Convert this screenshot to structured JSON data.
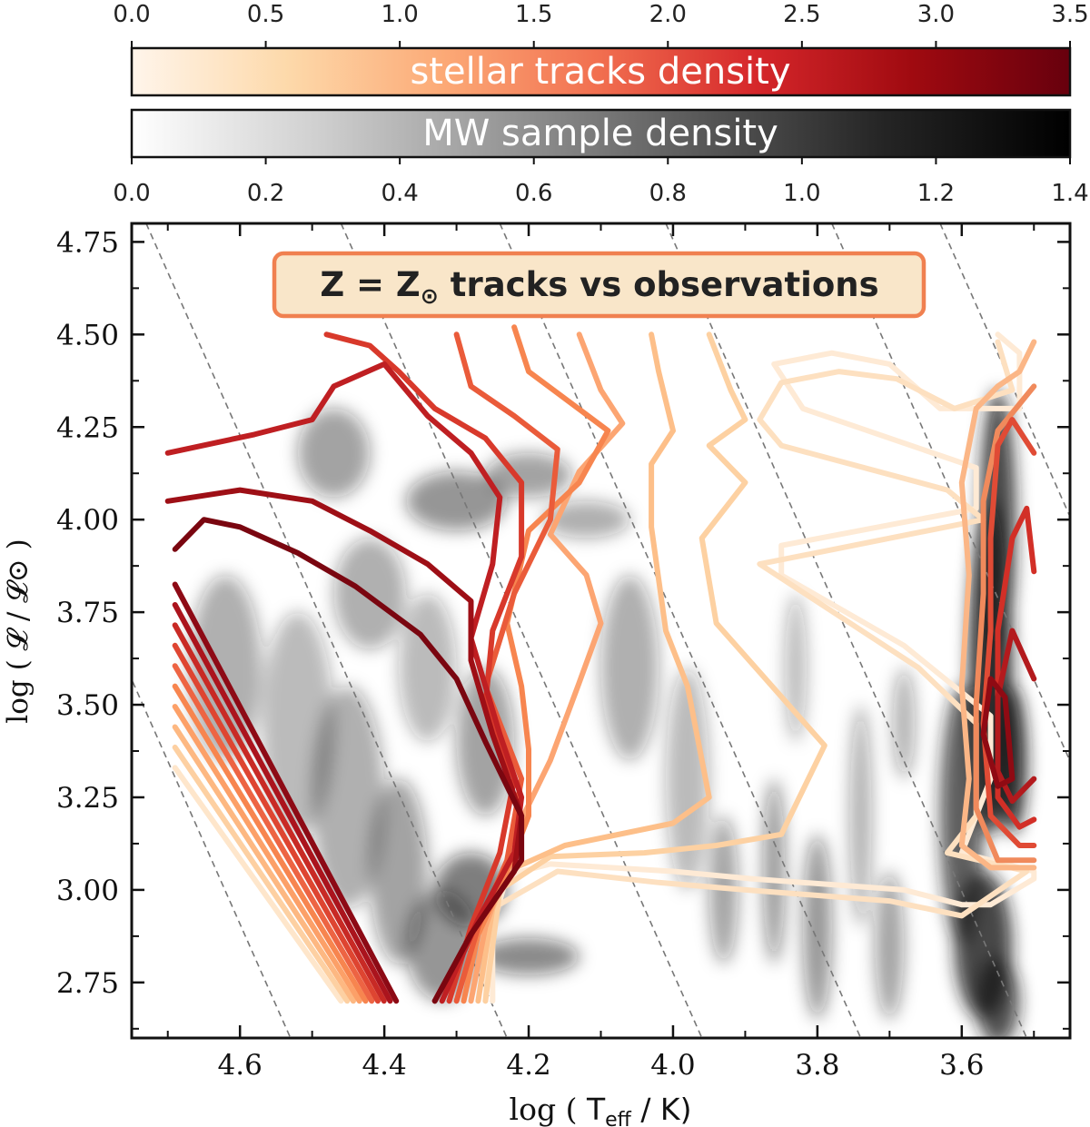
{
  "chart_data": {
    "type": "contour",
    "colorbars": [
      {
        "label": "stellar tracks density",
        "ticks": [
          "0.0",
          "0.5",
          "1.0",
          "1.5",
          "2.0",
          "2.5",
          "3.0",
          "3.5"
        ],
        "range": [
          0,
          3.5
        ],
        "colormap": [
          "#fff5eb",
          "#fdd9aa",
          "#fca976",
          "#f16e4f",
          "#d5262a",
          "#9f0a10",
          "#67000d"
        ]
      },
      {
        "label": "MW sample density",
        "ticks": [
          "0.0",
          "0.2",
          "0.4",
          "0.6",
          "0.8",
          "1.0",
          "1.2",
          "1.4"
        ],
        "range": [
          0,
          1.4
        ],
        "colormap": [
          "#ffffff",
          "#cfcfcf",
          "#969696",
          "#5a5a5a",
          "#252525",
          "#000000"
        ]
      }
    ],
    "xlabel": "log ( T_eff / K)",
    "ylabel": "log ( 𝓛 / 𝓛⊙ )",
    "x_range": [
      4.75,
      3.45
    ],
    "y_range": [
      2.6,
      4.8
    ],
    "x_inverted": true,
    "x_ticks": [
      "4.6",
      "4.4",
      "4.2",
      "4.0",
      "3.8",
      "3.6"
    ],
    "y_ticks": [
      "2.75",
      "3.00",
      "3.25",
      "3.50",
      "3.75",
      "4.00",
      "4.25",
      "4.50",
      "4.75"
    ],
    "annotation": {
      "main": "Z = Z",
      "sun_symbol": "⊙",
      "rest": " tracks vs observations"
    },
    "contour_series": [
      {
        "level": 0,
        "color": "#feead5",
        "points": [
          [
            3.55,
            4.5
          ],
          [
            3.52,
            4.45
          ],
          [
            3.52,
            4.3
          ],
          [
            3.63,
            4.3
          ],
          [
            3.7,
            4.42
          ],
          [
            3.78,
            4.45
          ],
          [
            3.86,
            4.42
          ],
          [
            3.82,
            4.3
          ],
          [
            3.58,
            4.14
          ],
          [
            3.58,
            4.03
          ],
          [
            3.85,
            3.93
          ],
          [
            3.85,
            3.85
          ],
          [
            3.68,
            3.66
          ],
          [
            3.56,
            3.47
          ],
          [
            3.56,
            3.3
          ],
          [
            3.6,
            3.1
          ],
          [
            3.5,
            3.05
          ],
          [
            3.5,
            3.03
          ],
          [
            3.56,
            2.96
          ],
          [
            3.6,
            2.96
          ],
          [
            3.68,
            3.0
          ],
          [
            3.89,
            3.03
          ],
          [
            4.0,
            3.05
          ],
          [
            4.17,
            3.07
          ],
          [
            4.23,
            3.04
          ],
          [
            4.25,
            2.9
          ],
          [
            4.25,
            2.7
          ]
        ]
      },
      {
        "level": 1,
        "color": "#fde0c0",
        "points": [
          [
            3.55,
            4.48
          ],
          [
            3.53,
            4.35
          ],
          [
            3.61,
            4.3
          ],
          [
            3.69,
            4.38
          ],
          [
            3.77,
            4.4
          ],
          [
            3.85,
            4.37
          ],
          [
            3.88,
            4.27
          ],
          [
            3.85,
            4.2
          ],
          [
            3.62,
            4.08
          ],
          [
            3.57,
            4.0
          ],
          [
            3.88,
            3.88
          ],
          [
            3.66,
            3.6
          ],
          [
            3.58,
            3.45
          ],
          [
            3.58,
            3.2
          ],
          [
            3.62,
            3.1
          ],
          [
            3.51,
            3.05
          ],
          [
            3.6,
            2.93
          ],
          [
            3.7,
            2.97
          ],
          [
            3.9,
            3.0
          ],
          [
            4.02,
            3.02
          ],
          [
            4.16,
            3.05
          ],
          [
            4.25,
            2.95
          ],
          [
            4.26,
            2.7
          ]
        ]
      },
      {
        "level": 2,
        "color": "#fdd1a2",
        "points": [
          [
            3.95,
            4.5
          ],
          [
            3.92,
            4.35
          ],
          [
            3.9,
            4.27
          ],
          [
            3.95,
            4.2
          ],
          [
            3.9,
            4.1
          ],
          [
            3.96,
            3.95
          ],
          [
            3.94,
            3.72
          ],
          [
            3.79,
            3.39
          ],
          [
            3.85,
            3.15
          ],
          [
            3.94,
            3.12
          ],
          [
            4.04,
            3.1
          ],
          [
            4.17,
            3.09
          ],
          [
            4.24,
            3.0
          ],
          [
            4.26,
            2.7
          ]
        ]
      },
      {
        "level": 3,
        "color": "#fdbf89",
        "points": [
          [
            4.03,
            4.5
          ],
          [
            4.02,
            4.4
          ],
          [
            4.0,
            4.24
          ],
          [
            4.03,
            4.15
          ],
          [
            4.03,
            3.98
          ],
          [
            4.01,
            3.7
          ],
          [
            3.98,
            3.55
          ],
          [
            3.95,
            3.25
          ],
          [
            4.0,
            3.18
          ],
          [
            4.15,
            3.12
          ],
          [
            4.23,
            3.05
          ],
          [
            4.25,
            2.95
          ],
          [
            4.27,
            2.7
          ]
        ]
      },
      {
        "level": 4,
        "color": "#fca572",
        "points": [
          [
            4.13,
            4.5
          ],
          [
            4.1,
            4.35
          ],
          [
            4.07,
            4.26
          ],
          [
            4.13,
            4.13
          ],
          [
            4.17,
            3.96
          ],
          [
            4.12,
            3.85
          ],
          [
            4.1,
            3.72
          ],
          [
            4.13,
            3.56
          ],
          [
            4.17,
            3.35
          ],
          [
            4.22,
            3.15
          ],
          [
            4.23,
            3.07
          ],
          [
            4.26,
            2.9
          ],
          [
            4.28,
            2.7
          ]
        ]
      },
      {
        "level": 5,
        "color": "#f7854f",
        "points": [
          [
            4.22,
            4.52
          ],
          [
            4.2,
            4.4
          ],
          [
            4.09,
            4.24
          ],
          [
            4.13,
            4.1
          ],
          [
            4.2,
            3.97
          ],
          [
            4.23,
            3.72
          ],
          [
            4.21,
            3.55
          ],
          [
            4.2,
            3.38
          ],
          [
            4.2,
            3.2
          ],
          [
            4.23,
            3.05
          ],
          [
            4.27,
            2.88
          ],
          [
            4.29,
            2.7
          ]
        ]
      },
      {
        "level": 6,
        "color": "#ea5b3a",
        "points": [
          [
            4.3,
            4.5
          ],
          [
            4.28,
            4.36
          ],
          [
            4.22,
            4.28
          ],
          [
            4.16,
            4.19
          ],
          [
            4.17,
            4.0
          ],
          [
            4.22,
            3.8
          ],
          [
            4.26,
            3.55
          ],
          [
            4.21,
            3.3
          ],
          [
            4.23,
            3.08
          ],
          [
            4.27,
            2.9
          ],
          [
            4.3,
            2.7
          ]
        ]
      },
      {
        "level": 7,
        "color": "#d8392b",
        "points": [
          [
            4.48,
            4.5
          ],
          [
            4.42,
            4.47
          ],
          [
            4.38,
            4.4
          ],
          [
            4.33,
            4.3
          ],
          [
            4.26,
            4.22
          ],
          [
            4.21,
            4.1
          ],
          [
            4.21,
            3.9
          ],
          [
            4.25,
            3.7
          ],
          [
            4.26,
            3.5
          ],
          [
            4.22,
            3.3
          ],
          [
            4.24,
            3.1
          ],
          [
            4.28,
            2.9
          ],
          [
            4.31,
            2.7
          ]
        ]
      },
      {
        "level": 8,
        "color": "#bf1f22",
        "points": [
          [
            4.7,
            4.18
          ],
          [
            4.58,
            4.23
          ],
          [
            4.5,
            4.27
          ],
          [
            4.47,
            4.36
          ],
          [
            4.4,
            4.42
          ],
          [
            4.34,
            4.28
          ],
          [
            4.28,
            4.18
          ],
          [
            4.24,
            4.06
          ],
          [
            4.25,
            3.88
          ],
          [
            4.28,
            3.68
          ],
          [
            4.24,
            3.42
          ],
          [
            4.21,
            3.25
          ],
          [
            4.22,
            3.1
          ],
          [
            4.27,
            2.92
          ],
          [
            4.32,
            2.7
          ]
        ]
      },
      {
        "level": 9,
        "color": "#9e0f16",
        "points": [
          [
            4.7,
            4.05
          ],
          [
            4.6,
            4.08
          ],
          [
            4.5,
            4.05
          ],
          [
            4.42,
            3.97
          ],
          [
            4.34,
            3.88
          ],
          [
            4.28,
            3.78
          ],
          [
            4.28,
            3.62
          ],
          [
            4.25,
            3.42
          ],
          [
            4.21,
            3.2
          ],
          [
            4.22,
            3.05
          ],
          [
            4.28,
            2.88
          ],
          [
            4.33,
            2.7
          ]
        ]
      },
      {
        "level": 10,
        "color": "#7a0610",
        "points": [
          [
            4.69,
            3.92
          ],
          [
            4.65,
            4.0
          ],
          [
            4.6,
            3.98
          ],
          [
            4.52,
            3.91
          ],
          [
            4.44,
            3.82
          ],
          [
            4.35,
            3.69
          ],
          [
            4.3,
            3.57
          ],
          [
            4.26,
            3.4
          ],
          [
            4.21,
            3.2
          ],
          [
            4.21,
            3.08
          ],
          [
            4.28,
            2.88
          ],
          [
            4.33,
            2.7
          ]
        ]
      }
    ],
    "right_clump_contours": [
      {
        "color": "#fbb686",
        "points": [
          [
            3.5,
            4.48
          ],
          [
            3.52,
            4.4
          ],
          [
            3.55,
            4.36
          ],
          [
            3.58,
            4.3
          ],
          [
            3.6,
            4.1
          ],
          [
            3.59,
            3.85
          ],
          [
            3.6,
            3.55
          ],
          [
            3.59,
            3.3
          ],
          [
            3.6,
            3.12
          ],
          [
            3.56,
            3.06
          ],
          [
            3.5,
            3.06
          ]
        ]
      },
      {
        "color": "#f08a5c",
        "points": [
          [
            3.5,
            4.36
          ],
          [
            3.55,
            4.24
          ],
          [
            3.57,
            4.05
          ],
          [
            3.57,
            3.8
          ],
          [
            3.58,
            3.5
          ],
          [
            3.58,
            3.22
          ],
          [
            3.55,
            3.08
          ],
          [
            3.5,
            3.08
          ]
        ]
      },
      {
        "color": "#e04b35",
        "points": [
          [
            3.5,
            4.18
          ],
          [
            3.53,
            4.27
          ],
          [
            3.55,
            4.2
          ],
          [
            3.56,
            3.95
          ],
          [
            3.56,
            3.7
          ],
          [
            3.57,
            3.45
          ],
          [
            3.56,
            3.2
          ],
          [
            3.52,
            3.12
          ],
          [
            3.5,
            3.12
          ]
        ]
      },
      {
        "color": "#d22f27",
        "points": [
          [
            3.5,
            3.86
          ],
          [
            3.51,
            4.03
          ],
          [
            3.53,
            3.95
          ],
          [
            3.55,
            3.7
          ],
          [
            3.55,
            3.45
          ],
          [
            3.55,
            3.25
          ],
          [
            3.52,
            3.17
          ],
          [
            3.5,
            3.19
          ]
        ]
      },
      {
        "color": "#b31a1d",
        "points": [
          [
            3.5,
            3.57
          ],
          [
            3.53,
            3.7
          ],
          [
            3.55,
            3.52
          ],
          [
            3.55,
            3.32
          ],
          [
            3.53,
            3.24
          ],
          [
            3.5,
            3.3
          ]
        ]
      },
      {
        "color": "#8f0a13",
        "points": [
          [
            3.53,
            3.3
          ],
          [
            3.54,
            3.52
          ],
          [
            3.56,
            3.57
          ],
          [
            3.57,
            3.42
          ],
          [
            3.55,
            3.28
          ],
          [
            3.53,
            3.3
          ]
        ]
      }
    ],
    "hot_edge_band": {
      "from": [
        4.69,
        3.88
      ],
      "to": [
        4.46,
        2.7
      ]
    },
    "iso_radius_lines": {
      "color": "#777777",
      "style": "dashed"
    }
  }
}
